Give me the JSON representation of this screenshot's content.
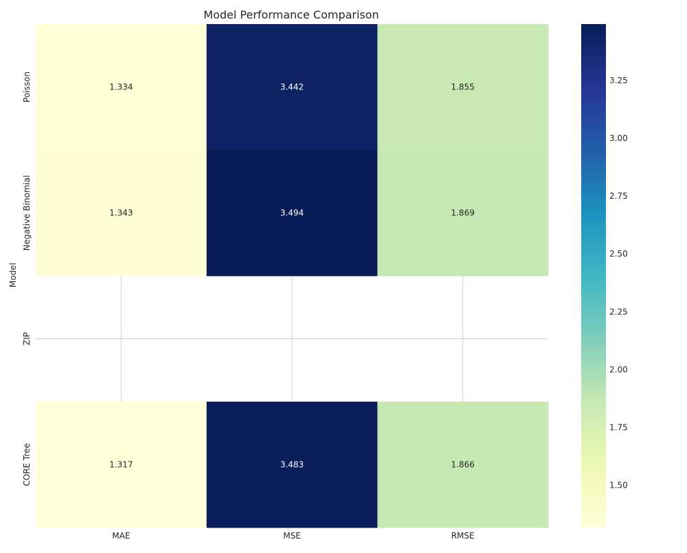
{
  "chart_data": {
    "type": "heatmap",
    "title": "Model Performance Comparison",
    "xlabel": "",
    "ylabel": "Model",
    "columns": [
      "MAE",
      "MSE",
      "RMSE"
    ],
    "rows": [
      "Poisson",
      "Negative Binomial",
      "ZIP",
      "CORE Tree"
    ],
    "values": [
      [
        1.334,
        3.442,
        1.855
      ],
      [
        1.343,
        3.494,
        1.869
      ],
      [
        null,
        null,
        null
      ],
      [
        1.317,
        3.483,
        1.866
      ]
    ],
    "value_labels": [
      [
        "1.334",
        "3.442",
        "1.855"
      ],
      [
        "1.343",
        "3.494",
        "1.869"
      ],
      [
        null,
        null,
        null
      ],
      [
        "1.317",
        "3.483",
        "1.866"
      ]
    ],
    "colormap": "YlGnBu",
    "colorbar": {
      "vmin": 1.317,
      "vmax": 3.494,
      "ticks": [
        1.5,
        1.75,
        2.0,
        2.25,
        2.5,
        2.75,
        3.0,
        3.25
      ],
      "tick_labels": [
        "1.50",
        "1.75",
        "2.00",
        "2.25",
        "2.50",
        "2.75",
        "3.00",
        "3.25"
      ]
    },
    "grid": true,
    "missing_color": "#ffffff",
    "grid_color": "#cccccc",
    "text_color": "#262626"
  }
}
